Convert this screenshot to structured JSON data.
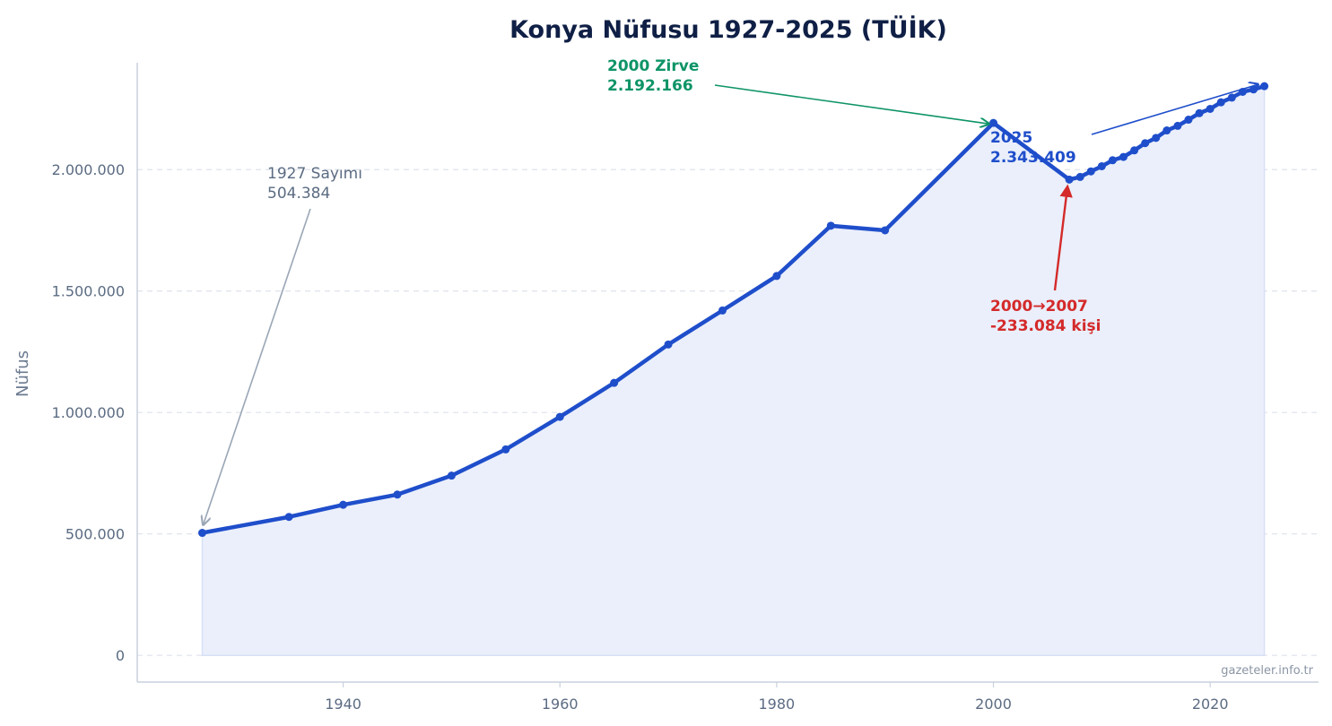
{
  "chart_data": {
    "type": "line",
    "title": "Konya Nüfusu 1927-2025 (TÜİK)",
    "xlabel": "",
    "ylabel": "Nüfus",
    "xlim": [
      1921,
      2030
    ],
    "ylim": [
      -110000,
      2440000
    ],
    "x_ticks": [
      1940,
      1960,
      1980,
      2000,
      2020
    ],
    "x_tick_labels": [
      "1940",
      "1960",
      "1980",
      "2000",
      "2020"
    ],
    "y_ticks": [
      0,
      500000,
      1000000,
      1500000,
      2000000
    ],
    "y_tick_labels": [
      "0",
      "500.000",
      "1.000.000",
      "1.500.000",
      "2.000.000"
    ],
    "grid": "horizontal-dashed",
    "area_fill": true,
    "series": [
      {
        "name": "",
        "color": "#1f4ecb",
        "x": [
          1927,
          1935,
          1940,
          1945,
          1950,
          1955,
          1960,
          1965,
          1970,
          1975,
          1980,
          1985,
          1990,
          2000,
          2007,
          2008,
          2009,
          2010,
          2011,
          2012,
          2013,
          2014,
          2015,
          2016,
          2017,
          2018,
          2019,
          2020,
          2021,
          2022,
          2023,
          2024,
          2025
        ],
        "values": [
          504384,
          570000,
          620000,
          662000,
          740000,
          848000,
          982000,
          1122000,
          1280000,
          1420000,
          1562000,
          1769000,
          1750000,
          2192166,
          1959082,
          1969868,
          1992675,
          2013845,
          2038555,
          2052281,
          2079225,
          2108808,
          2130544,
          2161303,
          2180149,
          2205609,
          2232374,
          2250020,
          2277017,
          2296347,
          2320241,
          2330024,
          2343409
        ]
      }
    ],
    "annotations": [
      {
        "id": "a1927",
        "lines": [
          "1927 Sayımı",
          "504.384"
        ],
        "x": 1927,
        "y": 504384,
        "color": "#5b6b82",
        "arrow_color": "#9aa6b5",
        "bold": false
      },
      {
        "id": "a2000",
        "lines": [
          "2000 Zirve",
          "2.192.166"
        ],
        "x": 2000,
        "y": 2192166,
        "color": "#0e9467",
        "arrow_color": "#0e9467",
        "bold": true
      },
      {
        "id": "a2025",
        "lines": [
          "2025",
          "2.343.409"
        ],
        "x": 2025,
        "y": 2343409,
        "color": "#1f4ecb",
        "arrow_color": "#1f4ecb",
        "bold": true
      },
      {
        "id": "adrop",
        "lines": [
          "2000→2007",
          "-233.084 kişi"
        ],
        "x": 2007,
        "y": 1959082,
        "color": "#d42a2a",
        "arrow_color": "#d42a2a",
        "bold": true
      }
    ]
  },
  "watermark": "gazeteler.info.tr"
}
